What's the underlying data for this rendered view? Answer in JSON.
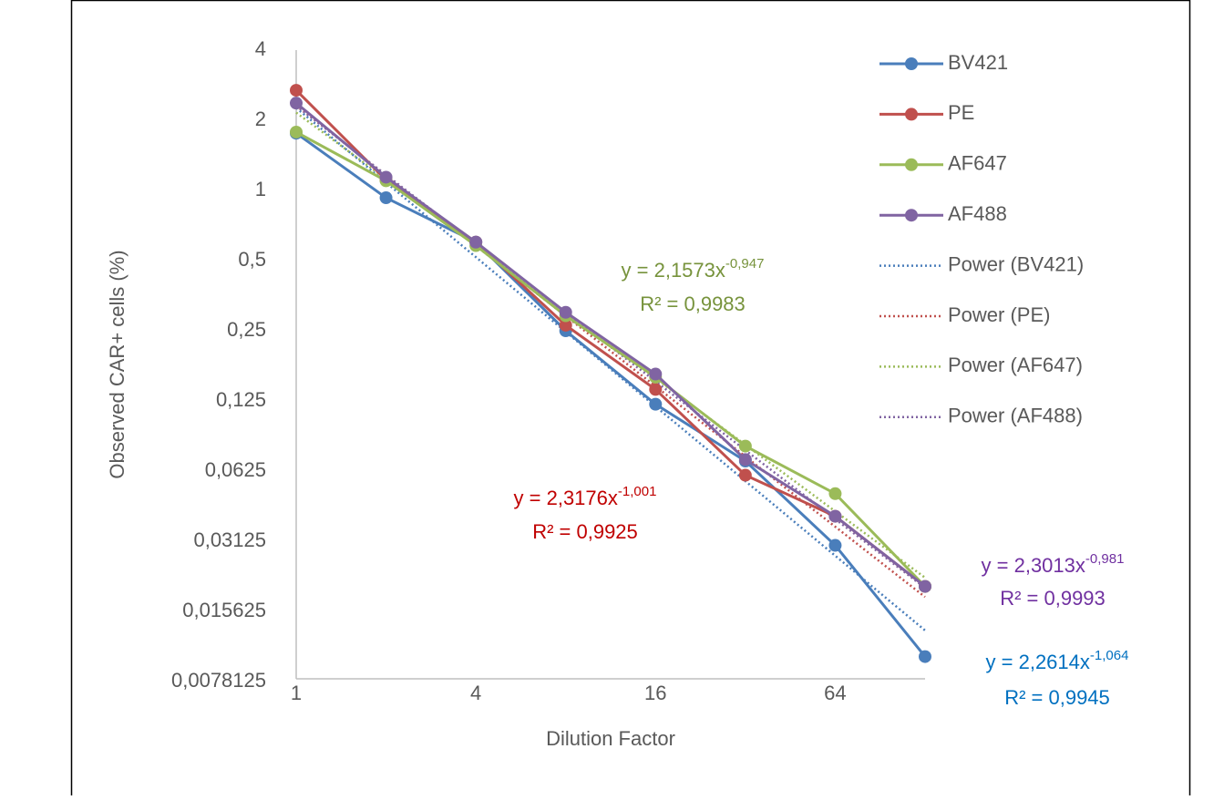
{
  "chart_data": {
    "type": "line",
    "x_label": "Dilution Factor",
    "y_label": "Observed CAR+ cells (%)",
    "xscale": "log",
    "yscale": "log",
    "grid": false,
    "legend": "right",
    "x": [
      1,
      2,
      4,
      8,
      16,
      32,
      64,
      128
    ],
    "xlim": [
      1,
      128
    ],
    "xticks": [
      1,
      4,
      16,
      64
    ],
    "ylim": [
      0.0078125,
      4
    ],
    "yticks": [
      {
        "value": 0.0078125,
        "label": "0,0078125"
      },
      {
        "value": 0.015625,
        "label": "0,015625"
      },
      {
        "value": 0.03125,
        "label": "0,03125"
      },
      {
        "value": 0.0625,
        "label": "0,0625"
      },
      {
        "value": 0.125,
        "label": "0,125"
      },
      {
        "value": 0.25,
        "label": "0,25"
      },
      {
        "value": 0.5,
        "label": "0,5"
      },
      1,
      2,
      4
    ],
    "series": [
      {
        "name": "BV421",
        "color": "#4a7ebb",
        "values": [
          1.76,
          0.93,
          0.6,
          0.25,
          0.121,
          0.069,
          0.03,
          0.01
        ],
        "trend": {
          "name": "Power (BV421)",
          "coef": 2.2614,
          "exp": -1.064,
          "color": "#0070c0",
          "equation": "y = 2,2614x",
          "exponent": "-1,064",
          "r2": "R² = 0,9945"
        }
      },
      {
        "name": "PE",
        "color": "#c0504d",
        "values": [
          2.69,
          1.11,
          0.6,
          0.264,
          0.14,
          0.06,
          0.04,
          0.02
        ],
        "trend": {
          "name": "Power (PE)",
          "coef": 2.3176,
          "exp": -1.001,
          "color": "#c00000",
          "equation": "y = 2,3176x",
          "exponent": "-1,001",
          "r2": "R² = 0,9925"
        }
      },
      {
        "name": "AF647",
        "color": "#9bbb59",
        "values": [
          1.78,
          1.1,
          0.58,
          0.29,
          0.158,
          0.08,
          0.05,
          0.02
        ],
        "trend": {
          "name": "Power (AF647)",
          "coef": 2.1573,
          "exp": -0.947,
          "color": "#77933c",
          "equation": "y = 2,1573x",
          "exponent": "-0,947",
          "r2": "R² = 0,9983"
        }
      },
      {
        "name": "AF488",
        "color": "#8064a2",
        "values": [
          2.37,
          1.14,
          0.6,
          0.3,
          0.163,
          0.07,
          0.04,
          0.02
        ],
        "trend": {
          "name": "Power (AF488)",
          "coef": 2.3013,
          "exp": -0.981,
          "color": "#7030a0",
          "equation": "y = 2,3013x",
          "exponent": "-0,981",
          "r2": "R² = 0,9993"
        }
      }
    ]
  }
}
